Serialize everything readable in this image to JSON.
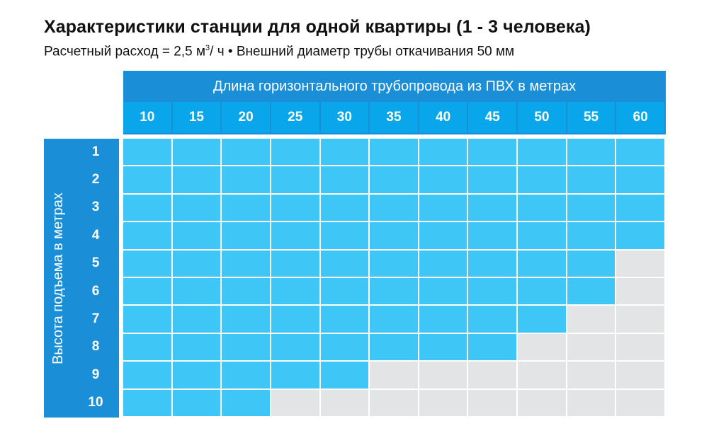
{
  "title": "Характеристики станции для одной квартиры (1 - 3 человека)",
  "subtitle": {
    "part1": "Расчетный расход = 2,5 м",
    "sup": "3",
    "part2": "/ ч • Внешний диаметр трубы откачивания ",
    "value": "50 мм"
  },
  "table": {
    "column_header": "Длина горизонтального трубопровода из ПВХ в метрах",
    "row_header": "Высота подъема в метрах",
    "columns": [
      "10",
      "15",
      "20",
      "25",
      "30",
      "35",
      "40",
      "45",
      "50",
      "55",
      "60"
    ],
    "rows": [
      "1",
      "2",
      "3",
      "4",
      "5",
      "6",
      "7",
      "8",
      "9",
      "10"
    ],
    "max_length_per_height": [
      60,
      60,
      60,
      60,
      55,
      55,
      50,
      45,
      30,
      20
    ]
  },
  "colors": {
    "header_blue": "#1a8fd8",
    "column_head_blue": "#0aa6ec",
    "allowed_cell": "#3ec6f6",
    "not_allowed_cell": "#e3e4e5"
  }
}
